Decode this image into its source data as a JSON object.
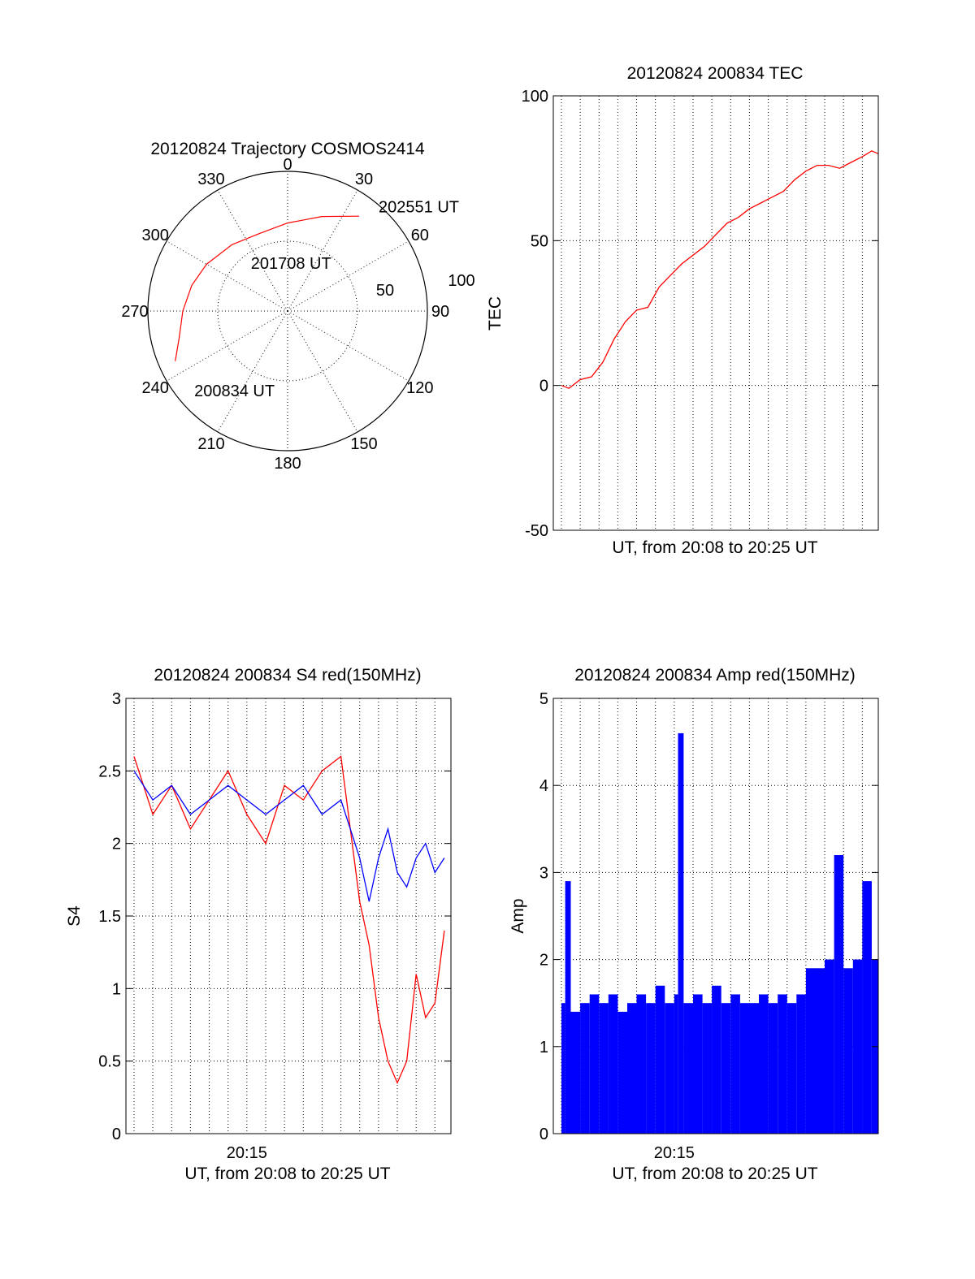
{
  "chart_data": [
    {
      "id": "polar",
      "type": "scatter",
      "subtype": "polar-trajectory",
      "title": "20120824 Trajectory COSMOS2414",
      "angle_labels": [
        "0",
        "30",
        "60",
        "90",
        "120",
        "150",
        "180",
        "210",
        "240",
        "270",
        "300",
        "330"
      ],
      "radius_labels": [
        "50",
        "100"
      ],
      "grid": true,
      "series": [
        {
          "color": "#ff0000",
          "azimuth_deg": [
            246,
            256,
            270,
            285,
            300,
            320,
            340,
            360,
            380,
            397
          ],
          "radius": [
            88,
            80,
            75,
            71,
            67,
            62,
            59,
            63,
            72,
            85
          ]
        }
      ],
      "annotations": [
        {
          "text": "202551 UT",
          "azimuth_deg": 38,
          "radius": 94
        },
        {
          "text": "201708 UT",
          "azimuth_deg": 4,
          "radius": 35
        },
        {
          "text": "200834 UT",
          "azimuth_deg": 214,
          "radius": 68
        }
      ]
    },
    {
      "id": "tec",
      "type": "line",
      "title": "20120824 200834 TEC",
      "xlabel": "UT, from 20:08 to 20:25 UT",
      "ylabel": "TEC",
      "xlim": [
        8.57,
        25.85
      ],
      "ylim": [
        -50,
        100
      ],
      "yticks": [
        "100",
        "50",
        "0",
        "-50"
      ],
      "xgrid": [
        9,
        10,
        11,
        12,
        13,
        14,
        15,
        16,
        17,
        18,
        19,
        20,
        21,
        22,
        23,
        24,
        25
      ],
      "grid": true,
      "series": [
        {
          "color": "#ff0000",
          "x": [
            9.0,
            9.4,
            10.0,
            10.6,
            11.2,
            11.8,
            12.4,
            13.0,
            13.6,
            14.2,
            14.8,
            15.4,
            16.0,
            16.6,
            17.2,
            17.8,
            18.4,
            19.0,
            19.6,
            20.2,
            20.8,
            21.4,
            22.0,
            22.6,
            23.2,
            23.8,
            24.4,
            25.0,
            25.5,
            25.85
          ],
          "y": [
            0,
            -1,
            2,
            3,
            8,
            16,
            22,
            26,
            27,
            34,
            38,
            42,
            45,
            48,
            52,
            56,
            58,
            61,
            63,
            65,
            67,
            71,
            74,
            76,
            76,
            75,
            77,
            79,
            81,
            80
          ]
        }
      ]
    },
    {
      "id": "s4",
      "type": "line",
      "title": "20120824 200834 S4 red(150MHz)",
      "xlabel": "UT, from 20:08 to 20:25 UT",
      "ylabel": "S4",
      "xlim": [
        8.57,
        25.85
      ],
      "ylim": [
        0,
        3
      ],
      "yticks": [
        "3",
        "2.5",
        "2",
        "1.5",
        "1",
        "0.5",
        "0"
      ],
      "xtick_labels": [
        {
          "x": 15.0,
          "label": "20:15"
        }
      ],
      "xgrid": [
        9,
        10,
        11,
        12,
        13,
        14,
        15,
        16,
        17,
        18,
        19,
        20,
        21,
        22,
        23,
        24,
        25
      ],
      "grid": true,
      "series": [
        {
          "color": "#ff0000",
          "x": [
            9.0,
            10.0,
            11.0,
            12.0,
            13.0,
            14.0,
            15.0,
            16.0,
            17.0,
            18.0,
            19.0,
            20.0,
            21.0,
            21.5,
            22.0,
            22.5,
            23.0,
            23.5,
            24.0,
            24.5,
            25.0,
            25.5
          ],
          "y": [
            2.6,
            2.2,
            2.4,
            2.1,
            2.3,
            2.5,
            2.2,
            2.0,
            2.4,
            2.3,
            2.5,
            2.6,
            1.6,
            1.3,
            0.8,
            0.5,
            0.35,
            0.5,
            1.1,
            0.8,
            0.9,
            1.4
          ]
        },
        {
          "color": "#0000ff",
          "x": [
            9.0,
            10.0,
            11.0,
            12.0,
            13.0,
            14.0,
            15.0,
            16.0,
            17.0,
            18.0,
            19.0,
            20.0,
            21.0,
            21.5,
            22.0,
            22.5,
            23.0,
            23.5,
            24.0,
            24.5,
            25.0,
            25.5
          ],
          "y": [
            2.5,
            2.3,
            2.4,
            2.2,
            2.3,
            2.4,
            2.3,
            2.2,
            2.3,
            2.4,
            2.2,
            2.3,
            1.9,
            1.6,
            1.9,
            2.1,
            1.8,
            1.7,
            1.9,
            2.0,
            1.8,
            1.9
          ]
        }
      ]
    },
    {
      "id": "amp",
      "type": "bar",
      "title": "20120824 200834 Amp red(150MHz)",
      "xlabel": "UT, from 20:08 to 20:25 UT",
      "ylabel": "Amp",
      "xlim": [
        8.57,
        25.85
      ],
      "ylim": [
        0,
        5
      ],
      "yticks": [
        "5",
        "4",
        "3",
        "2",
        "1",
        "0"
      ],
      "xtick_labels": [
        {
          "x": 15.0,
          "label": "20:15"
        }
      ],
      "xgrid": [
        9,
        10,
        11,
        12,
        13,
        14,
        15,
        16,
        17,
        18,
        19,
        20,
        21,
        22,
        23,
        24,
        25
      ],
      "grid": true,
      "series": [
        {
          "color": "#0000ff",
          "x": [
            9.0,
            9.2,
            9.5,
            10.0,
            10.5,
            11.0,
            11.5,
            12.0,
            12.5,
            13.0,
            13.5,
            14.0,
            14.5,
            15.0,
            15.2,
            15.5,
            16.0,
            16.5,
            17.0,
            17.5,
            18.0,
            18.5,
            19.0,
            19.5,
            20.0,
            20.5,
            21.0,
            21.5,
            22.0,
            22.5,
            23.0,
            23.5,
            24.0,
            24.5,
            25.0,
            25.5
          ],
          "y": [
            1.5,
            2.9,
            1.4,
            1.5,
            1.6,
            1.5,
            1.6,
            1.4,
            1.5,
            1.6,
            1.5,
            1.7,
            1.5,
            1.6,
            4.6,
            1.5,
            1.6,
            1.5,
            1.7,
            1.5,
            1.6,
            1.5,
            1.5,
            1.6,
            1.5,
            1.6,
            1.5,
            1.6,
            1.9,
            1.9,
            2.0,
            3.2,
            1.9,
            2.0,
            2.9,
            2.0
          ]
        }
      ]
    }
  ]
}
